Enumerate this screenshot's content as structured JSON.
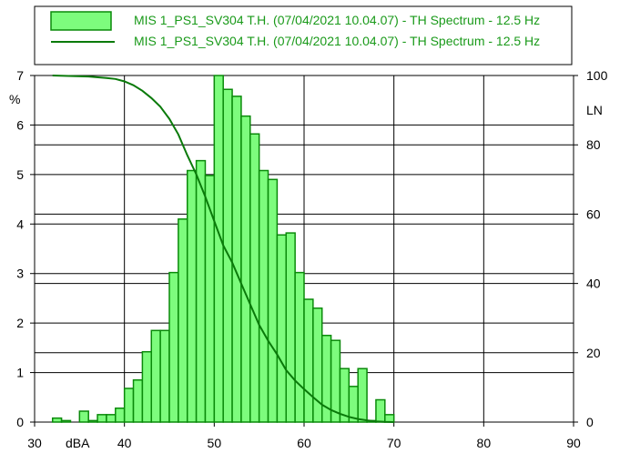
{
  "colors": {
    "bar_fill": "#7dfc7d",
    "bar_stroke": "#0a8a0a",
    "line": "#0a7a0a",
    "legend_text": "#1a9a1a",
    "grid": "#000000"
  },
  "legend": [
    {
      "type": "bar",
      "label": "MIS 1_PS1_SV304 T.H. (07/04/2021 10.04.07) - TH Spectrum - 12.5 Hz"
    },
    {
      "type": "line",
      "label": "MIS 1_PS1_SV304 T.H. (07/04/2021 10.04.07) - TH Spectrum - 12.5 Hz"
    }
  ],
  "chart_data": {
    "type": "bar",
    "x_unit_label": "dBA",
    "y_left_unit_label": "%",
    "y_right_unit_label": "LN",
    "xlim": [
      30,
      90
    ],
    "ylim_left": [
      0,
      7
    ],
    "ylim_right": [
      0,
      100
    ],
    "x_ticks": [
      "30",
      "40",
      "50",
      "60",
      "70",
      "80",
      "90"
    ],
    "y_left_ticks": [
      "0",
      "1",
      "2",
      "3",
      "4",
      "5",
      "6",
      "7"
    ],
    "y_right_ticks": [
      "0",
      "20",
      "40",
      "60",
      "80",
      "100"
    ],
    "grid": true,
    "bin_width": 1,
    "bins": [
      {
        "x": 32,
        "y": 0.08
      },
      {
        "x": 33,
        "y": 0.03
      },
      {
        "x": 35,
        "y": 0.22
      },
      {
        "x": 36,
        "y": 0.03
      },
      {
        "x": 37,
        "y": 0.15
      },
      {
        "x": 38,
        "y": 0.15
      },
      {
        "x": 39,
        "y": 0.28
      },
      {
        "x": 40,
        "y": 0.68
      },
      {
        "x": 41,
        "y": 0.85
      },
      {
        "x": 42,
        "y": 1.42
      },
      {
        "x": 43,
        "y": 1.85
      },
      {
        "x": 44,
        "y": 1.85
      },
      {
        "x": 45,
        "y": 3.02
      },
      {
        "x": 46,
        "y": 4.1
      },
      {
        "x": 47,
        "y": 5.08
      },
      {
        "x": 48,
        "y": 5.28
      },
      {
        "x": 49,
        "y": 4.98
      },
      {
        "x": 50,
        "y": 7.08
      },
      {
        "x": 51,
        "y": 6.72
      },
      {
        "x": 52,
        "y": 6.58
      },
      {
        "x": 53,
        "y": 6.18
      },
      {
        "x": 54,
        "y": 5.82
      },
      {
        "x": 55,
        "y": 5.08
      },
      {
        "x": 56,
        "y": 4.9
      },
      {
        "x": 57,
        "y": 3.78
      },
      {
        "x": 58,
        "y": 3.82
      },
      {
        "x": 59,
        "y": 3.02
      },
      {
        "x": 60,
        "y": 2.48
      },
      {
        "x": 61,
        "y": 2.3
      },
      {
        "x": 62,
        "y": 1.75
      },
      {
        "x": 63,
        "y": 1.65
      },
      {
        "x": 64,
        "y": 1.08
      },
      {
        "x": 65,
        "y": 0.72
      },
      {
        "x": 66,
        "y": 1.08
      },
      {
        "x": 67,
        "y": 0.03
      },
      {
        "x": 68,
        "y": 0.45
      },
      {
        "x": 69,
        "y": 0.15
      }
    ],
    "ln_curve": [
      {
        "x": 32,
        "y": 100
      },
      {
        "x": 36,
        "y": 99.7
      },
      {
        "x": 38,
        "y": 99.3
      },
      {
        "x": 39,
        "y": 99
      },
      {
        "x": 40,
        "y": 98.3
      },
      {
        "x": 41,
        "y": 97.2
      },
      {
        "x": 42,
        "y": 95.6
      },
      {
        "x": 43,
        "y": 93.5
      },
      {
        "x": 44,
        "y": 91
      },
      {
        "x": 45,
        "y": 87.5
      },
      {
        "x": 46,
        "y": 83
      },
      {
        "x": 47,
        "y": 77
      },
      {
        "x": 48,
        "y": 71.5
      },
      {
        "x": 49,
        "y": 65
      },
      {
        "x": 50,
        "y": 58
      },
      {
        "x": 51,
        "y": 51
      },
      {
        "x": 52,
        "y": 46
      },
      {
        "x": 53,
        "y": 40
      },
      {
        "x": 54,
        "y": 34
      },
      {
        "x": 55,
        "y": 28
      },
      {
        "x": 56,
        "y": 23.5
      },
      {
        "x": 57,
        "y": 19.5
      },
      {
        "x": 58,
        "y": 15
      },
      {
        "x": 59,
        "y": 12
      },
      {
        "x": 60,
        "y": 9.5
      },
      {
        "x": 61,
        "y": 7.2
      },
      {
        "x": 62,
        "y": 5
      },
      {
        "x": 63,
        "y": 3.5
      },
      {
        "x": 64,
        "y": 2.4
      },
      {
        "x": 65,
        "y": 1.5
      },
      {
        "x": 66,
        "y": 0.9
      },
      {
        "x": 67,
        "y": 0.5
      },
      {
        "x": 68,
        "y": 0.2
      },
      {
        "x": 69,
        "y": 0.05
      },
      {
        "x": 70,
        "y": 0
      }
    ]
  }
}
